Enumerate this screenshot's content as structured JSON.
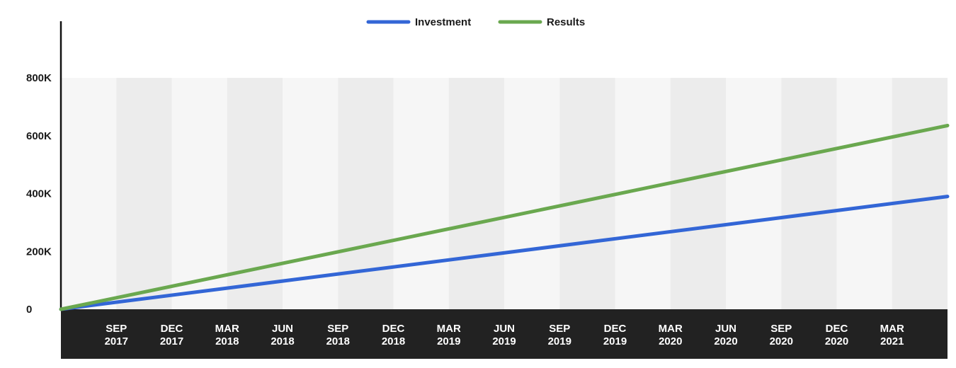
{
  "chart_data": {
    "type": "line",
    "x_tick_labels": [
      {
        "month": "SEP",
        "year": "2017"
      },
      {
        "month": "DEC",
        "year": "2017"
      },
      {
        "month": "MAR",
        "year": "2018"
      },
      {
        "month": "JUN",
        "year": "2018"
      },
      {
        "month": "SEP",
        "year": "2018"
      },
      {
        "month": "DEC",
        "year": "2018"
      },
      {
        "month": "MAR",
        "year": "2019"
      },
      {
        "month": "JUN",
        "year": "2019"
      },
      {
        "month": "SEP",
        "year": "2019"
      },
      {
        "month": "DEC",
        "year": "2019"
      },
      {
        "month": "MAR",
        "year": "2020"
      },
      {
        "month": "JUN",
        "year": "2020"
      },
      {
        "month": "SEP",
        "year": "2020"
      },
      {
        "month": "DEC",
        "year": "2020"
      },
      {
        "month": "MAR",
        "year": "2021"
      }
    ],
    "y_ticks": [
      {
        "value": 0,
        "label": "0"
      },
      {
        "value": 200000,
        "label": "200K"
      },
      {
        "value": 400000,
        "label": "400K"
      },
      {
        "value": 600000,
        "label": "600K"
      },
      {
        "value": 800000,
        "label": "800K"
      }
    ],
    "ylim": [
      0,
      800000
    ],
    "xlim": [
      "2017-06",
      "2021-06"
    ],
    "series": [
      {
        "name": "Investment",
        "color": "#3366d6",
        "points": [
          {
            "x": "2017-06",
            "y": 0
          },
          {
            "x": "2021-06",
            "y": 390000
          }
        ]
      },
      {
        "name": "Results",
        "color": "#6aa84f",
        "points": [
          {
            "x": "2017-06",
            "y": 0
          },
          {
            "x": "2021-06",
            "y": 635000
          }
        ]
      }
    ],
    "legend_position": "top-center",
    "grid": "alternating-vertical-bands",
    "colors": {
      "axis": "#111111",
      "x_axis_band": "#222222",
      "band_light": "#f6f6f6",
      "band_dark": "#ececec"
    }
  }
}
